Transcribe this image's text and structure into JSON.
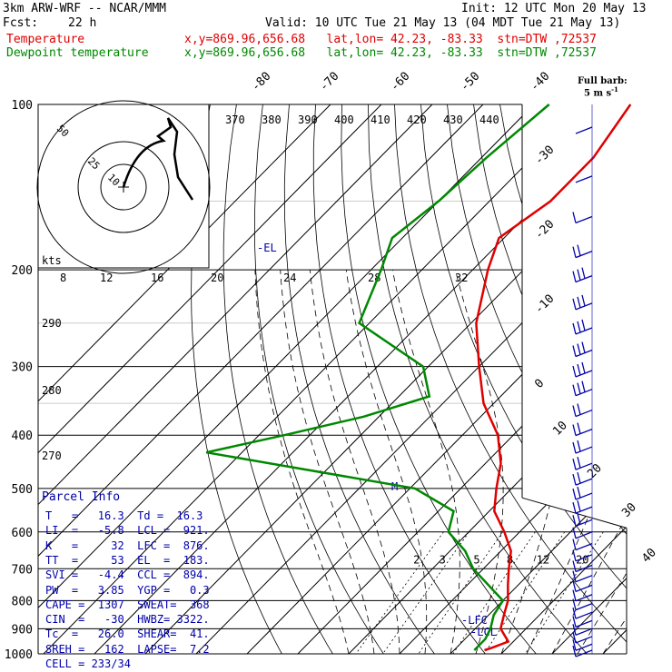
{
  "header": {
    "model": "3km ARW-WRF -- NCAR/MMM",
    "init": "Init: 12 UTC Mon 20 May 13",
    "fcst_label": "Fcst:",
    "fcst_value": "22 h",
    "valid": "Valid: 10 UTC Tue 21 May 13 (04 MDT Tue 21 May 13)",
    "temp_label": "Temperature",
    "temp_loc": "x,y=869.96,656.68   lat,lon= 42.23, -83.33  stn=DTW ,72537",
    "dew_label": "Dewpoint temperature",
    "dew_loc": "x,y=869.96,656.68   lat,lon= 42.23, -83.33  stn=DTW ,72537"
  },
  "barb_legend": {
    "line1": "Full barb:",
    "line2": "5 m s",
    "exp": "-1"
  },
  "colors": {
    "temperature": "#e00000",
    "dewpoint": "#008800",
    "parcel": "#0000aa",
    "hodograph": "#000000"
  },
  "parcel_info": {
    "title": "Parcel Info",
    "rows": [
      "T   =   16.3  Td =  16.3",
      "LI  =   -5.8  LCL =  921.",
      "K   =     32  LFC =  876.",
      "TT  =     53  EL  =  183.",
      "SVI =   -4.4  CCL =  894.",
      "PW  =   3.85  YGP =   0.3",
      "CAPE =  1307  SWEAT=  368",
      "CIN  =   -30  HWBZ= 3322.",
      "Tc  =   26.0  SHEAR=  41.",
      "SREH =   162  LAPSE=  7.2",
      "CELL = 233/34"
    ]
  },
  "chart_data": {
    "type": "line",
    "chart_kind": "skew-T log-P sounding",
    "pressure_levels": [
      "100",
      "200",
      "300",
      "400",
      "500",
      "600",
      "700",
      "800",
      "900",
      "1000"
    ],
    "isotherm_labels": [
      "-80",
      "-70",
      "-60",
      "-50",
      "-40",
      "-30",
      "-20",
      "-10",
      "0",
      "10",
      "20",
      "30",
      "40"
    ],
    "theta_labels": [
      "370",
      "380",
      "390",
      "400",
      "410",
      "420",
      "430",
      "440"
    ],
    "theta_left_labels": [
      "290",
      "280",
      "270"
    ],
    "mixing_ratio_labels": [
      "2",
      "3",
      "5",
      "8",
      "12",
      "20"
    ],
    "annotations": {
      "el": "EL",
      "lfc": "LFC",
      "lcl": "LCL",
      "m": "M"
    },
    "hodograph": {
      "unit": "kts",
      "ring_labels": [
        "50",
        "25",
        "10"
      ],
      "speed_ticks": [
        "8",
        "12",
        "16",
        "20",
        "24",
        "28",
        "32"
      ]
    },
    "series": [
      {
        "name": "Temperature",
        "points": [
          [
            100,
            -61
          ],
          [
            125,
            -58
          ],
          [
            150,
            -58
          ],
          [
            175,
            -61
          ],
          [
            200,
            -57
          ],
          [
            250,
            -49
          ],
          [
            300,
            -40
          ],
          [
            350,
            -32
          ],
          [
            400,
            -23
          ],
          [
            450,
            -17
          ],
          [
            500,
            -13
          ],
          [
            550,
            -9
          ],
          [
            600,
            -3
          ],
          [
            650,
            2
          ],
          [
            700,
            5
          ],
          [
            750,
            8
          ],
          [
            800,
            11
          ],
          [
            850,
            13
          ],
          [
            900,
            15
          ],
          [
            950,
            19
          ],
          [
            975,
            17
          ],
          [
            985,
            16
          ]
        ]
      },
      {
        "name": "Dewpoint temperature",
        "points": [
          [
            100,
            -77
          ],
          [
            125,
            -79
          ],
          [
            150,
            -80
          ],
          [
            175,
            -82
          ],
          [
            200,
            -78
          ],
          [
            250,
            -72
          ],
          [
            300,
            -51
          ],
          [
            340,
            -44
          ],
          [
            370,
            -53
          ],
          [
            400,
            -65
          ],
          [
            430,
            -77
          ],
          [
            500,
            -29
          ],
          [
            550,
            -17
          ],
          [
            600,
            -14
          ],
          [
            650,
            -7
          ],
          [
            700,
            -2
          ],
          [
            800,
            10
          ],
          [
            850,
            11
          ],
          [
            900,
            13
          ],
          [
            940,
            14
          ],
          [
            985,
            14
          ]
        ]
      }
    ],
    "wind_barbs": [
      {
        "p": 110,
        "n": 0
      },
      {
        "p": 135,
        "n": 0
      },
      {
        "p": 160,
        "n": 1
      },
      {
        "p": 185,
        "n": 2
      },
      {
        "p": 205,
        "n": 3
      },
      {
        "p": 230,
        "n": 3
      },
      {
        "p": 255,
        "n": 3
      },
      {
        "p": 280,
        "n": 3
      },
      {
        "p": 305,
        "n": 3
      },
      {
        "p": 330,
        "n": 3
      },
      {
        "p": 360,
        "n": 2
      },
      {
        "p": 390,
        "n": 2
      },
      {
        "p": 420,
        "n": 2
      },
      {
        "p": 450,
        "n": 2
      },
      {
        "p": 480,
        "n": 2
      },
      {
        "p": 510,
        "n": 2
      },
      {
        "p": 540,
        "n": 2
      },
      {
        "p": 570,
        "n": 2
      },
      {
        "p": 600,
        "n": 1
      },
      {
        "p": 630,
        "n": 1
      },
      {
        "p": 660,
        "n": 1
      },
      {
        "p": 690,
        "n": 1
      },
      {
        "p": 720,
        "n": 1
      },
      {
        "p": 750,
        "n": 1
      },
      {
        "p": 780,
        "n": 1
      },
      {
        "p": 810,
        "n": 1
      },
      {
        "p": 840,
        "n": 1
      },
      {
        "p": 870,
        "n": 1
      },
      {
        "p": 900,
        "n": 1
      },
      {
        "p": 930,
        "n": 1
      },
      {
        "p": 960,
        "n": 1
      },
      {
        "p": 985,
        "n": 1
      }
    ]
  }
}
